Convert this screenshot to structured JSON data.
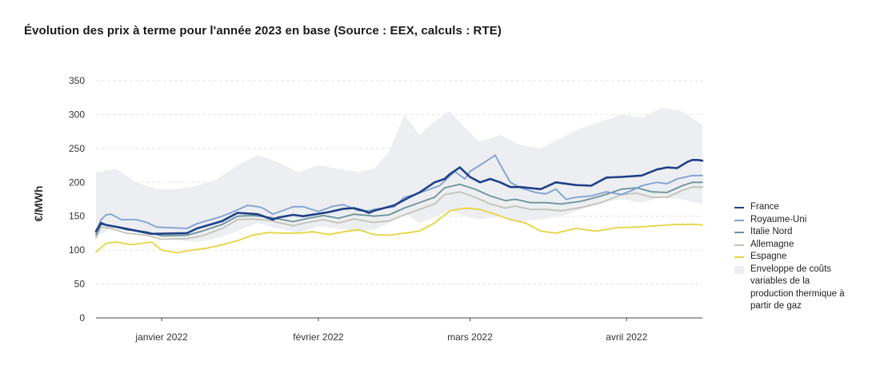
{
  "chart_data": {
    "type": "line",
    "title": "Évolution des prix à terme pour l'année 2023 en base (Source : EEX, calculs : RTE)",
    "ylabel": "€/MWh",
    "xlabel": "",
    "ylim": [
      0,
      350
    ],
    "yticks": [
      0,
      50,
      100,
      150,
      200,
      250,
      300,
      350
    ],
    "grid": true,
    "x_axis": {
      "type": "date",
      "min": "2021-12-23",
      "max": "2022-04-22"
    },
    "x_ticks": [
      {
        "date": "2022-01-05",
        "label": "janvier 2022"
      },
      {
        "date": "2022-02-05",
        "label": "février 2022"
      },
      {
        "date": "2022-03-07",
        "label": "mars 2022"
      },
      {
        "date": "2022-04-07",
        "label": "avril 2022"
      }
    ],
    "legend_position": "right",
    "series": [
      {
        "name": "France",
        "color": "#1f3f86",
        "x": [
          "2021-12-23",
          "2021-12-24",
          "2021-12-25",
          "2021-12-28",
          "2021-12-30",
          "2022-01-03",
          "2022-01-10",
          "2022-01-12",
          "2022-01-17",
          "2022-01-20",
          "2022-01-22",
          "2022-01-24",
          "2022-01-27",
          "2022-01-28",
          "2022-01-31",
          "2022-02-02",
          "2022-02-07",
          "2022-02-10",
          "2022-02-12",
          "2022-02-14",
          "2022-02-15",
          "2022-02-16",
          "2022-02-20",
          "2022-02-23",
          "2022-02-25",
          "2022-02-26",
          "2022-02-28",
          "2022-03-02",
          "2022-03-03",
          "2022-03-05",
          "2022-03-07",
          "2022-03-09",
          "2022-03-11",
          "2022-03-13",
          "2022-03-15",
          "2022-03-17",
          "2022-03-21",
          "2022-03-24",
          "2022-03-28",
          "2022-03-31",
          "2022-04-03",
          "2022-04-06",
          "2022-04-10",
          "2022-04-13",
          "2022-04-15",
          "2022-04-17",
          "2022-04-19",
          "2022-04-20",
          "2022-04-21",
          "2022-04-22"
        ],
        "values": [
          128,
          140,
          137,
          133,
          130,
          124,
          125,
          132,
          143,
          155,
          154,
          153,
          145,
          148,
          152,
          150,
          156,
          161,
          162,
          158,
          155,
          158,
          166,
          178,
          185,
          190,
          200,
          205,
          212,
          222,
          208,
          200,
          205,
          200,
          193,
          193,
          190,
          200,
          196,
          195,
          207,
          208,
          210,
          219,
          222,
          221,
          230,
          233,
          233,
          232
        ]
      },
      {
        "name": "Royaume-Uni",
        "color": "#7f9fd1",
        "x": [
          "2021-12-23",
          "2021-12-24",
          "2021-12-25",
          "2021-12-26",
          "2021-12-28",
          "2021-12-31",
          "2022-01-02",
          "2022-01-04",
          "2022-01-10",
          "2022-01-12",
          "2022-01-17",
          "2022-01-19",
          "2022-01-22",
          "2022-01-24",
          "2022-01-25",
          "2022-01-27",
          "2022-01-31",
          "2022-02-02",
          "2022-02-05",
          "2022-02-08",
          "2022-02-10",
          "2022-02-13",
          "2022-02-15",
          "2022-02-16",
          "2022-02-20",
          "2022-02-22",
          "2022-02-24",
          "2022-02-26",
          "2022-03-01",
          "2022-03-02",
          "2022-03-04",
          "2022-03-06",
          "2022-03-07",
          "2022-03-10",
          "2022-03-12",
          "2022-03-13",
          "2022-03-15",
          "2022-03-17",
          "2022-03-20",
          "2022-03-22",
          "2022-03-24",
          "2022-03-26",
          "2022-03-28",
          "2022-03-31",
          "2022-04-03",
          "2022-04-06",
          "2022-04-08",
          "2022-04-10",
          "2022-04-13",
          "2022-04-15",
          "2022-04-17",
          "2022-04-20",
          "2022-04-22"
        ],
        "values": [
          125,
          145,
          152,
          153,
          145,
          145,
          141,
          134,
          132,
          139,
          150,
          156,
          166,
          164,
          162,
          153,
          164,
          164,
          157,
          165,
          167,
          158,
          158,
          160,
          164,
          178,
          182,
          187,
          195,
          202,
          216,
          205,
          216,
          230,
          240,
          226,
          200,
          192,
          185,
          183,
          190,
          175,
          178,
          180,
          186,
          182,
          188,
          195,
          200,
          198,
          205,
          210,
          210
        ]
      },
      {
        "name": "Italie Nord",
        "color": "#6a9298",
        "x": [
          "2021-12-23",
          "2021-12-24",
          "2021-12-26",
          "2021-12-29",
          "2022-01-02",
          "2022-01-05",
          "2022-01-10",
          "2022-01-13",
          "2022-01-17",
          "2022-01-20",
          "2022-01-23",
          "2022-01-26",
          "2022-01-31",
          "2022-02-03",
          "2022-02-06",
          "2022-02-09",
          "2022-02-12",
          "2022-02-15",
          "2022-02-16",
          "2022-02-19",
          "2022-02-22",
          "2022-02-25",
          "2022-02-28",
          "2022-03-02",
          "2022-03-05",
          "2022-03-08",
          "2022-03-11",
          "2022-03-14",
          "2022-03-16",
          "2022-03-19",
          "2022-03-22",
          "2022-03-25",
          "2022-03-29",
          "2022-04-02",
          "2022-04-06",
          "2022-04-09",
          "2022-04-12",
          "2022-04-15",
          "2022-04-18",
          "2022-04-20",
          "2022-04-22"
        ],
        "values": [
          122,
          138,
          136,
          130,
          127,
          121,
          122,
          128,
          138,
          150,
          151,
          149,
          142,
          147,
          151,
          147,
          153,
          151,
          150,
          152,
          162,
          170,
          178,
          192,
          197,
          190,
          180,
          173,
          175,
          170,
          170,
          168,
          172,
          180,
          190,
          192,
          186,
          185,
          195,
          200,
          200
        ]
      },
      {
        "name": "Allemagne",
        "color": "#c2c2b8",
        "x": [
          "2021-12-23",
          "2021-12-24",
          "2021-12-26",
          "2021-12-29",
          "2022-01-02",
          "2022-01-05",
          "2022-01-10",
          "2022-01-13",
          "2022-01-17",
          "2022-01-20",
          "2022-01-23",
          "2022-01-26",
          "2022-01-31",
          "2022-02-03",
          "2022-02-06",
          "2022-02-09",
          "2022-02-12",
          "2022-02-15",
          "2022-02-16",
          "2022-02-19",
          "2022-02-22",
          "2022-02-25",
          "2022-02-28",
          "2022-03-02",
          "2022-03-05",
          "2022-03-08",
          "2022-03-11",
          "2022-03-14",
          "2022-03-16",
          "2022-03-19",
          "2022-03-22",
          "2022-03-25",
          "2022-03-29",
          "2022-04-02",
          "2022-04-06",
          "2022-04-09",
          "2022-04-12",
          "2022-04-15",
          "2022-04-18",
          "2022-04-20",
          "2022-04-22"
        ],
        "values": [
          118,
          134,
          132,
          125,
          122,
          116,
          117,
          121,
          132,
          145,
          146,
          144,
          136,
          141,
          145,
          140,
          146,
          142,
          141,
          143,
          152,
          160,
          168,
          182,
          186,
          178,
          168,
          162,
          165,
          160,
          160,
          158,
          163,
          170,
          182,
          184,
          178,
          178,
          188,
          193,
          193
        ]
      },
      {
        "name": "Espagne",
        "color": "#e6d33d",
        "x": [
          "2021-12-23",
          "2021-12-25",
          "2021-12-27",
          "2021-12-30",
          "2022-01-03",
          "2022-01-05",
          "2022-01-08",
          "2022-01-11",
          "2022-01-14",
          "2022-01-17",
          "2022-01-20",
          "2022-01-23",
          "2022-01-26",
          "2022-01-29",
          "2022-02-01",
          "2022-02-04",
          "2022-02-07",
          "2022-02-10",
          "2022-02-13",
          "2022-02-16",
          "2022-02-19",
          "2022-02-22",
          "2022-02-25",
          "2022-02-28",
          "2022-03-03",
          "2022-03-06",
          "2022-03-09",
          "2022-03-12",
          "2022-03-15",
          "2022-03-18",
          "2022-03-21",
          "2022-03-24",
          "2022-03-28",
          "2022-04-01",
          "2022-04-05",
          "2022-04-09",
          "2022-04-13",
          "2022-04-17",
          "2022-04-20",
          "2022-04-22"
        ],
        "values": [
          97,
          110,
          112,
          108,
          112,
          100,
          96,
          100,
          103,
          108,
          114,
          122,
          126,
          125,
          125,
          127,
          123,
          127,
          130,
          123,
          122,
          125,
          128,
          140,
          158,
          162,
          160,
          153,
          145,
          140,
          128,
          125,
          132,
          128,
          133,
          134,
          136,
          138,
          138,
          137
        ]
      }
    ],
    "envelope": {
      "name": "Enveloppe de coûts variables de la production thermique à partir de gaz",
      "color": "#eceef1",
      "x": [
        "2021-12-23",
        "2021-12-27",
        "2021-12-31",
        "2022-01-04",
        "2022-01-08",
        "2022-01-12",
        "2022-01-16",
        "2022-01-20",
        "2022-01-24",
        "2022-01-28",
        "2022-02-01",
        "2022-02-05",
        "2022-02-09",
        "2022-02-13",
        "2022-02-16",
        "2022-02-19",
        "2022-02-22",
        "2022-02-25",
        "2022-02-28",
        "2022-03-03",
        "2022-03-06",
        "2022-03-09",
        "2022-03-13",
        "2022-03-17",
        "2022-03-21",
        "2022-03-25",
        "2022-03-29",
        "2022-04-02",
        "2022-04-06",
        "2022-04-10",
        "2022-04-14",
        "2022-04-18",
        "2022-04-22"
      ],
      "upper": [
        215,
        220,
        200,
        190,
        190,
        195,
        205,
        225,
        240,
        230,
        215,
        225,
        220,
        215,
        220,
        245,
        300,
        270,
        290,
        305,
        280,
        260,
        270,
        255,
        250,
        265,
        280,
        290,
        300,
        295,
        310,
        305,
        285
      ],
      "lower": [
        120,
        135,
        130,
        120,
        115,
        112,
        118,
        128,
        140,
        132,
        125,
        135,
        132,
        128,
        130,
        140,
        155,
        140,
        148,
        160,
        150,
        145,
        150,
        142,
        145,
        150,
        160,
        170,
        175,
        170,
        178,
        175,
        168
      ]
    }
  },
  "legend": [
    {
      "label": "France",
      "color": "#1f3f86",
      "kind": "line"
    },
    {
      "label": "Royaume-Uni",
      "color": "#7f9fd1",
      "kind": "line"
    },
    {
      "label": "Italie Nord",
      "color": "#6a9298",
      "kind": "line"
    },
    {
      "label": "Allemagne",
      "color": "#c2c2b8",
      "kind": "line"
    },
    {
      "label": "Espagne",
      "color": "#e6d33d",
      "kind": "line"
    },
    {
      "label": "Enveloppe de coûts variables de la production thermique à partir de gaz",
      "color": "#eceef1",
      "kind": "area"
    }
  ]
}
